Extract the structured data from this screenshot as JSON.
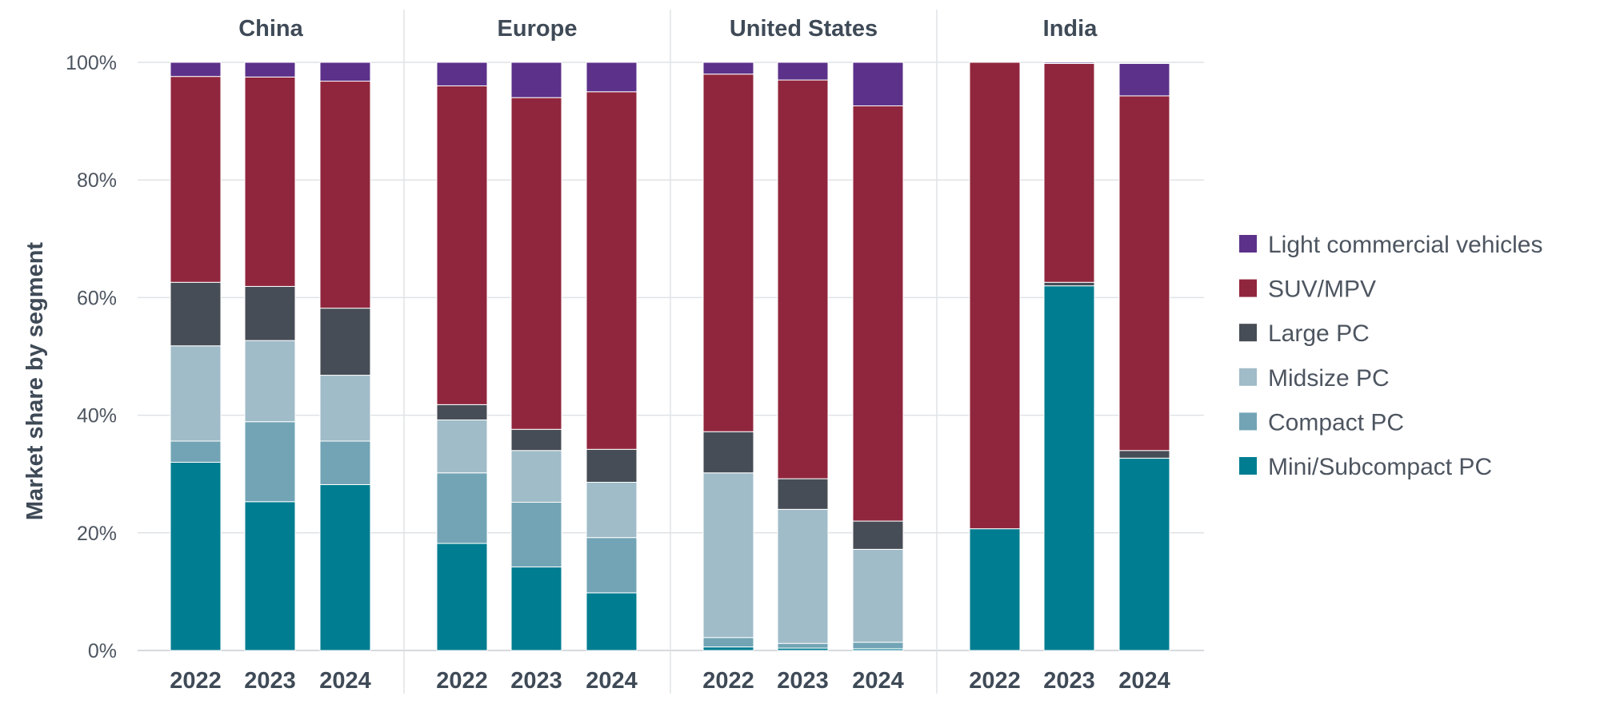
{
  "chart_data": {
    "type": "bar",
    "stacked": true,
    "ylabel": "Market share by segment",
    "ylim": [
      0,
      100
    ],
    "yticks": [
      "0%",
      "20%",
      "40%",
      "60%",
      "80%",
      "100%"
    ],
    "categories": [
      "2022",
      "2023",
      "2024"
    ],
    "grid": true,
    "legend_position": "right",
    "series": [
      {
        "name": "Mini/Subcompact PC",
        "color": "#007d91"
      },
      {
        "name": "Compact PC",
        "color": "#72a4b5"
      },
      {
        "name": "Midsize PC",
        "color": "#a0bcc8"
      },
      {
        "name": "Large PC",
        "color": "#474d56"
      },
      {
        "name": "SUV/MPV",
        "color": "#90263d"
      },
      {
        "name": "Light commercial vehicles",
        "color": "#5c318a"
      }
    ],
    "legend_order": [
      "Light commercial vehicles",
      "SUV/MPV",
      "Large PC",
      "Midsize PC",
      "Compact PC",
      "Mini/Subcompact PC"
    ],
    "panels": [
      {
        "title": "China",
        "values": {
          "Mini/Subcompact PC": [
            32,
            25.3,
            28.2
          ],
          "Compact PC": [
            3.6,
            13.6,
            7.4
          ],
          "Midsize PC": [
            16.2,
            13.8,
            11.2
          ],
          "Large PC": [
            10.8,
            9.2,
            11.4
          ],
          "SUV/MPV": [
            35,
            35.6,
            38.6
          ],
          "Light commercial vehicles": [
            2.4,
            2.5,
            3.2
          ]
        }
      },
      {
        "title": "Europe",
        "values": {
          "Mini/Subcompact PC": [
            18.2,
            14.2,
            9.8
          ],
          "Compact PC": [
            12,
            11,
            9.4
          ],
          "Midsize PC": [
            9,
            8.8,
            9.4
          ],
          "Large PC": [
            2.6,
            3.6,
            5.6
          ],
          "SUV/MPV": [
            54.2,
            56.4,
            60.8
          ],
          "Light commercial vehicles": [
            4,
            6,
            5
          ]
        }
      },
      {
        "title": "United States",
        "values": {
          "Mini/Subcompact PC": [
            0.6,
            0.4,
            0.3
          ],
          "Compact PC": [
            1.6,
            0.8,
            1.1
          ],
          "Midsize PC": [
            28,
            22.8,
            15.8
          ],
          "Large PC": [
            7,
            5.2,
            4.8
          ],
          "SUV/MPV": [
            60.8,
            67.8,
            70.6
          ],
          "Light commercial vehicles": [
            2,
            3,
            7.4
          ]
        }
      },
      {
        "title": "India",
        "values": {
          "Mini/Subcompact PC": [
            20.7,
            62,
            32.7
          ],
          "Compact PC": [
            0,
            0,
            0
          ],
          "Midsize PC": [
            0,
            0,
            0
          ],
          "Large PC": [
            0,
            0.6,
            1.3
          ],
          "SUV/MPV": [
            79.3,
            37.2,
            60.3
          ],
          "Light commercial vehicles": [
            0,
            0.2,
            5.5
          ]
        }
      }
    ]
  }
}
